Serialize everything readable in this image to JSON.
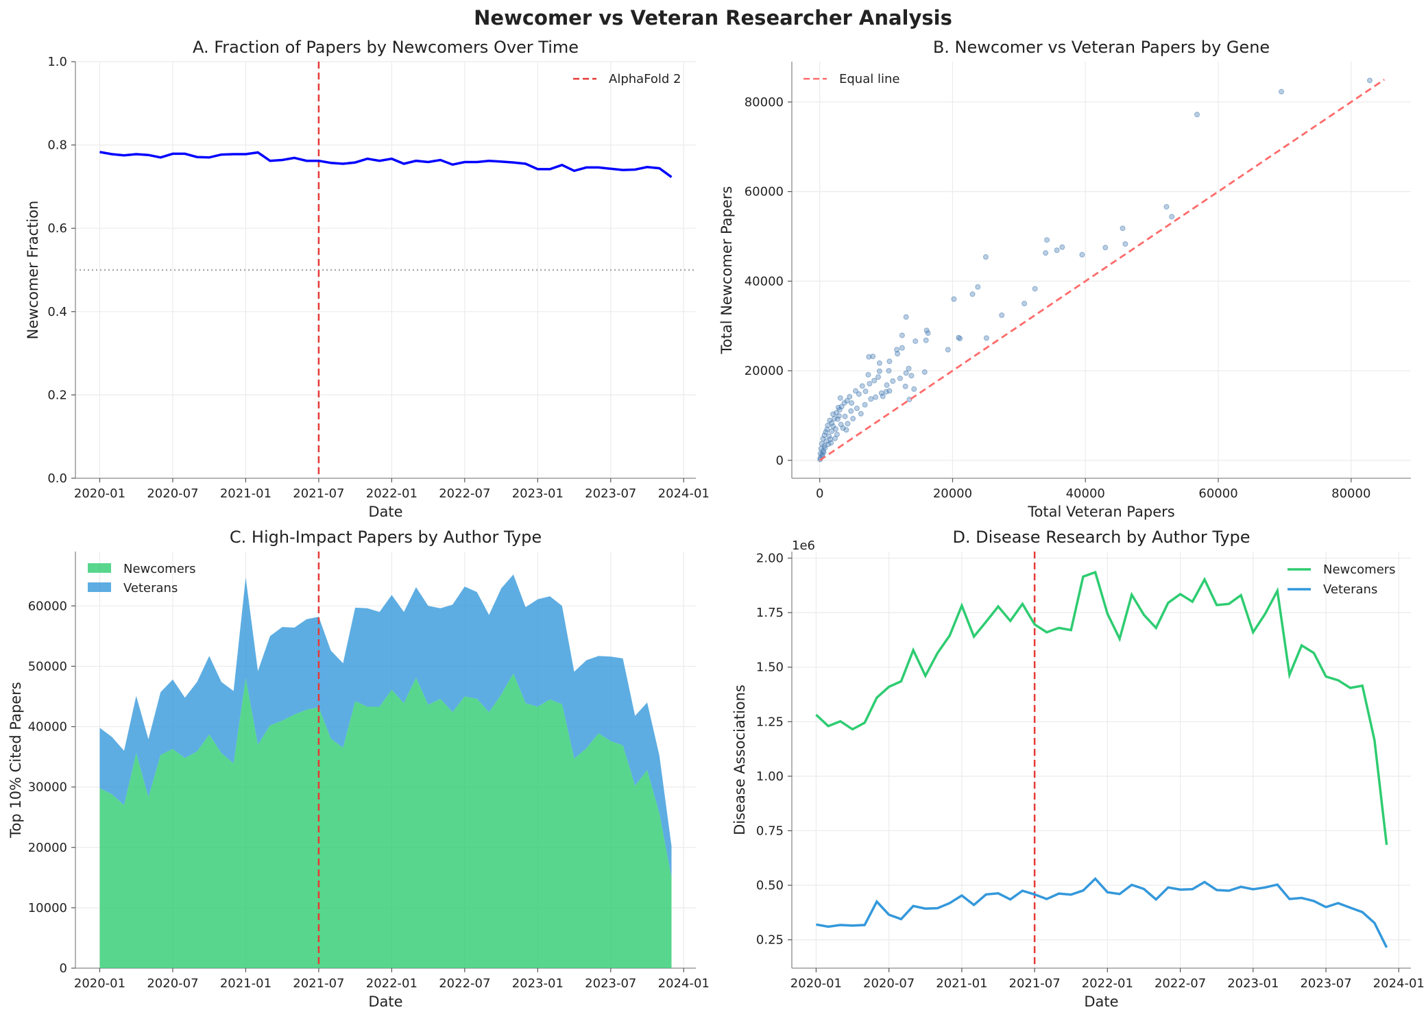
{
  "figure_title": "Newcomer vs Veteran Researcher Analysis",
  "colors": {
    "fraction_line": "#0000ff",
    "alphafold_line": "#e53935",
    "newcomers": "#2ecc71",
    "veterans": "#3498db",
    "scatter": "#4a7fb5",
    "equal_line": "#ff6b6b",
    "reference_line": "#aaaaaa"
  },
  "chart_data": [
    {
      "id": "A",
      "type": "line",
      "title": "A. Fraction of Papers by Newcomers Over Time",
      "xlabel": "Date",
      "ylabel": "Newcomer Fraction",
      "x_start": "2020-01",
      "xlim": [
        -2,
        49
      ],
      "ylim": [
        0,
        1.0
      ],
      "xticks": [
        0,
        6,
        12,
        18,
        24,
        30,
        36,
        42,
        48
      ],
      "xtick_labels": [
        "2020-01",
        "2020-07",
        "2021-01",
        "2021-07",
        "2022-01",
        "2022-07",
        "2023-01",
        "2023-07",
        "2024-01"
      ],
      "yticks": [
        0,
        0.2,
        0.4,
        0.6,
        0.8,
        1.0
      ],
      "ytick_labels": [
        "0.0",
        "0.2",
        "0.4",
        "0.6",
        "0.8",
        "1.0"
      ],
      "series": [
        {
          "name": "Newcomer fraction",
          "values": [
            0.783,
            0.778,
            0.775,
            0.778,
            0.776,
            0.77,
            0.779,
            0.779,
            0.771,
            0.77,
            0.777,
            0.778,
            0.778,
            0.782,
            0.762,
            0.764,
            0.769,
            0.762,
            0.762,
            0.757,
            0.755,
            0.758,
            0.767,
            0.762,
            0.767,
            0.755,
            0.762,
            0.759,
            0.764,
            0.753,
            0.759,
            0.759,
            0.762,
            0.76,
            0.758,
            0.755,
            0.742,
            0.742,
            0.752,
            0.738,
            0.746,
            0.746,
            0.743,
            0.74,
            0.741,
            0.747,
            0.744,
            0.723
          ]
        }
      ],
      "vline": {
        "x": 18,
        "label": "AlphaFold 2"
      },
      "hline": {
        "y": 0.5
      },
      "legend": {
        "entries": [
          "AlphaFold 2"
        ],
        "loc": "upper right"
      }
    },
    {
      "id": "B",
      "type": "scatter",
      "title": "B. Newcomer vs Veteran Papers by Gene",
      "xlabel": "Total Veteran Papers",
      "ylabel": "Total Newcomer Papers",
      "xlim": [
        -4200,
        89000
      ],
      "ylim": [
        -4000,
        89000
      ],
      "xticks": [
        0,
        20000,
        40000,
        60000,
        80000
      ],
      "yticks": [
        0,
        20000,
        40000,
        60000,
        80000
      ],
      "equal_line": {
        "from": 0,
        "to": 85000,
        "label": "Equal line"
      },
      "legend": {
        "entries": [
          "Equal line"
        ],
        "loc": "upper left"
      },
      "points": [
        [
          82800,
          84800
        ],
        [
          69500,
          82300
        ],
        [
          56800,
          77200
        ],
        [
          52200,
          56600
        ],
        [
          53000,
          54400
        ],
        [
          45600,
          51800
        ],
        [
          46000,
          48300
        ],
        [
          43000,
          47500
        ],
        [
          34200,
          49200
        ],
        [
          36500,
          47600
        ],
        [
          35700,
          46900
        ],
        [
          34000,
          46300
        ],
        [
          39500,
          45900
        ],
        [
          25000,
          45400
        ],
        [
          32400,
          38300
        ],
        [
          23800,
          38700
        ],
        [
          23000,
          37100
        ],
        [
          20200,
          36000
        ],
        [
          30800,
          35000
        ],
        [
          27400,
          32400
        ],
        [
          13000,
          32000
        ],
        [
          16100,
          29000
        ],
        [
          16300,
          28400
        ],
        [
          20900,
          27400
        ],
        [
          21100,
          27200
        ],
        [
          16000,
          26800
        ],
        [
          25100,
          27300
        ],
        [
          14400,
          26600
        ],
        [
          12400,
          27900
        ],
        [
          12400,
          25100
        ],
        [
          11700,
          23800
        ],
        [
          11600,
          24700
        ],
        [
          19300,
          24700
        ],
        [
          8000,
          23200
        ],
        [
          7400,
          23100
        ],
        [
          10500,
          22100
        ],
        [
          9000,
          21700
        ],
        [
          9000,
          19900
        ],
        [
          10400,
          20000
        ],
        [
          13000,
          19500
        ],
        [
          13400,
          20500
        ],
        [
          15800,
          19700
        ],
        [
          13800,
          18900
        ],
        [
          14200,
          15900
        ],
        [
          13500,
          13600
        ],
        [
          10500,
          15500
        ],
        [
          10000,
          15300
        ],
        [
          9300,
          15000
        ],
        [
          7300,
          19100
        ],
        [
          6400,
          16600
        ],
        [
          5900,
          14800
        ],
        [
          5400,
          15500
        ],
        [
          4500,
          14200
        ],
        [
          3100,
          13900
        ],
        [
          4100,
          13300
        ],
        [
          4800,
          12800
        ],
        [
          3700,
          12800
        ],
        [
          3300,
          12000
        ],
        [
          2800,
          11800
        ],
        [
          3000,
          11300
        ],
        [
          2500,
          10600
        ],
        [
          2000,
          10300
        ],
        [
          2900,
          9900
        ],
        [
          2200,
          9300
        ],
        [
          1500,
          8900
        ],
        [
          1800,
          8300
        ],
        [
          1200,
          7800
        ],
        [
          2000,
          7600
        ],
        [
          1100,
          6900
        ],
        [
          900,
          6300
        ],
        [
          1800,
          6500
        ],
        [
          700,
          5600
        ],
        [
          1400,
          5400
        ],
        [
          500,
          4800
        ],
        [
          1000,
          4300
        ],
        [
          300,
          3700
        ],
        [
          700,
          3200
        ],
        [
          200,
          2600
        ],
        [
          500,
          2100
        ],
        [
          100,
          1500
        ],
        [
          300,
          1000
        ],
        [
          100,
          500
        ],
        [
          50,
          200
        ],
        [
          2400,
          7000
        ],
        [
          3200,
          8000
        ],
        [
          2700,
          9200
        ],
        [
          3800,
          9800
        ],
        [
          4700,
          11000
        ],
        [
          5600,
          11600
        ],
        [
          6200,
          10400
        ],
        [
          5000,
          9300
        ],
        [
          4200,
          8200
        ],
        [
          6800,
          12400
        ],
        [
          7700,
          13700
        ],
        [
          8400,
          14100
        ],
        [
          6900,
          15400
        ],
        [
          7500,
          17100
        ],
        [
          8200,
          17800
        ],
        [
          8800,
          18600
        ],
        [
          10100,
          16800
        ],
        [
          11000,
          17700
        ],
        [
          12100,
          18300
        ],
        [
          12900,
          16500
        ],
        [
          9500,
          14300
        ],
        [
          4000,
          6800
        ],
        [
          3500,
          7200
        ],
        [
          2600,
          5800
        ],
        [
          1600,
          4700
        ],
        [
          2300,
          4900
        ],
        [
          1300,
          3600
        ],
        [
          800,
          2800
        ],
        [
          1700,
          3900
        ],
        [
          600,
          1800
        ],
        [
          400,
          1300
        ]
      ]
    },
    {
      "id": "C",
      "type": "area",
      "title": "C. High-Impact Papers by Author Type",
      "xlabel": "Date",
      "ylabel": "Top 10% Cited Papers",
      "x_start": "2020-01",
      "xlim": [
        -2,
        49
      ],
      "ylim": [
        0,
        69000
      ],
      "xticks": [
        0,
        6,
        12,
        18,
        24,
        30,
        36,
        42,
        48
      ],
      "xtick_labels": [
        "2020-01",
        "2020-07",
        "2021-01",
        "2021-07",
        "2022-01",
        "2022-07",
        "2023-01",
        "2023-07",
        "2024-01"
      ],
      "yticks": [
        0,
        10000,
        20000,
        30000,
        40000,
        50000,
        60000
      ],
      "series": [
        {
          "name": "Newcomers",
          "values": [
            29800,
            28800,
            27000,
            35600,
            28300,
            35300,
            36300,
            34800,
            35900,
            38700,
            35600,
            33900,
            48000,
            37000,
            40200,
            41000,
            42000,
            42800,
            43200,
            38000,
            36500,
            44200,
            43300,
            43300,
            46100,
            43900,
            48100,
            43600,
            44600,
            42400,
            45000,
            44600,
            42400,
            45300,
            48800,
            43900,
            43300,
            44500,
            43700,
            34700,
            36400,
            38900,
            37600,
            36900,
            30200,
            32800,
            25600,
            15000
          ]
        },
        {
          "name": "Veterans",
          "values": [
            10000,
            9500,
            9000,
            9500,
            9600,
            10400,
            11500,
            10000,
            11500,
            13000,
            11800,
            12000,
            16700,
            12200,
            14800,
            15500,
            14400,
            15000,
            15000,
            14600,
            14000,
            15500,
            16300,
            15700,
            15700,
            15100,
            15000,
            16400,
            15000,
            17800,
            18200,
            17700,
            16100,
            17600,
            16400,
            15900,
            17800,
            17100,
            16300,
            14400,
            14600,
            12800,
            14000,
            14400,
            11600,
            11200,
            9600,
            5200
          ]
        }
      ],
      "stacked": true,
      "vline": {
        "x": 18
      },
      "legend": {
        "entries": [
          "Newcomers",
          "Veterans"
        ],
        "loc": "upper left"
      }
    },
    {
      "id": "D",
      "type": "line",
      "title": "D. Disease Research by Author Type",
      "xlabel": "Date",
      "ylabel": "Disease Associations",
      "y_offset_label": "1e6",
      "x_start": "2020-01",
      "xlim": [
        -2,
        49
      ],
      "ylim": [
        0.12,
        2.03
      ],
      "xticks": [
        0,
        6,
        12,
        18,
        24,
        30,
        36,
        42,
        48
      ],
      "xtick_labels": [
        "2020-01",
        "2020-07",
        "2021-01",
        "2021-07",
        "2022-01",
        "2022-07",
        "2023-01",
        "2023-07",
        "2024-01"
      ],
      "yticks": [
        0.25,
        0.5,
        0.75,
        1.0,
        1.25,
        1.5,
        1.75,
        2.0
      ],
      "ytick_labels": [
        "0.25",
        "0.50",
        "0.75",
        "1.00",
        "1.25",
        "1.50",
        "1.75",
        "2.00"
      ],
      "series": [
        {
          "name": "Newcomers",
          "values": [
            1.282,
            1.23,
            1.252,
            1.215,
            1.245,
            1.36,
            1.41,
            1.435,
            1.578,
            1.46,
            1.565,
            1.645,
            1.782,
            1.64,
            1.708,
            1.778,
            1.712,
            1.79,
            1.696,
            1.66,
            1.68,
            1.67,
            1.915,
            1.935,
            1.745,
            1.63,
            1.832,
            1.74,
            1.68,
            1.795,
            1.835,
            1.8,
            1.902,
            1.785,
            1.79,
            1.83,
            1.66,
            1.745,
            1.85,
            1.465,
            1.6,
            1.565,
            1.457,
            1.44,
            1.405,
            1.415,
            1.165,
            0.685
          ]
        },
        {
          "name": "Veterans",
          "values": [
            0.32,
            0.31,
            0.318,
            0.315,
            0.318,
            0.425,
            0.365,
            0.345,
            0.405,
            0.393,
            0.395,
            0.418,
            0.453,
            0.41,
            0.458,
            0.463,
            0.435,
            0.475,
            0.458,
            0.437,
            0.462,
            0.457,
            0.476,
            0.53,
            0.468,
            0.46,
            0.502,
            0.483,
            0.435,
            0.49,
            0.48,
            0.482,
            0.515,
            0.478,
            0.475,
            0.493,
            0.482,
            0.49,
            0.503,
            0.437,
            0.442,
            0.428,
            0.4,
            0.418,
            0.397,
            0.377,
            0.327,
            0.215
          ]
        }
      ],
      "vline": {
        "x": 18
      },
      "legend": {
        "entries": [
          "Newcomers",
          "Veterans"
        ],
        "loc": "upper right"
      }
    }
  ]
}
